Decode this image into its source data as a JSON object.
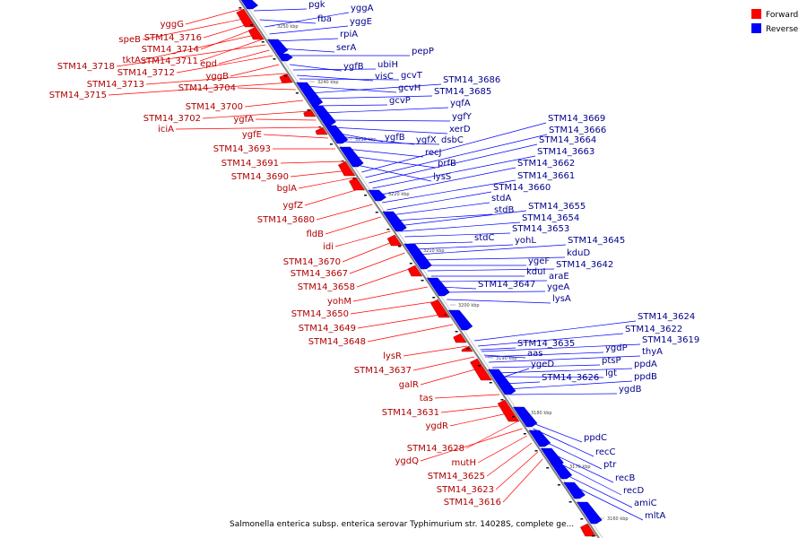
{
  "caption": "Salmonella enterica subsp. enterica serovar Typhimurium str. 14028S, complete ge...",
  "legend": [
    {
      "label": "Forward",
      "color": "#ff0000"
    },
    {
      "label": "Reverse",
      "color": "#0000ff"
    }
  ],
  "colors": {
    "forward": "#ff0000",
    "reverse": "#0000ff",
    "backbone": "#808080"
  },
  "ticks": [
    "3250 kbp",
    "3240 kbp",
    "3230 kbp",
    "3220 kbp",
    "3210 kbp",
    "3200 kbp",
    "3190 kbp",
    "3180 kbp",
    "3170 kbp",
    "3160 kbp"
  ],
  "forward_genes": [
    "yggG",
    "speB",
    "STM14_3716",
    "STM14_3714",
    "tktA",
    "STM14_3711",
    "STM14_3718",
    "epd",
    "STM14_3712",
    "yggB",
    "STM14_3713",
    "STM14_3715",
    "STM14_3704",
    "STM14_3700",
    "STM14_3702",
    "ygfA",
    "iciA",
    "ygfE",
    "STM14_3693",
    "STM14_3691",
    "STM14_3690",
    "bglA",
    "ygfZ",
    "STM14_3680",
    "fldB",
    "idi",
    "STM14_3670",
    "STM14_3667",
    "STM14_3658",
    "yohM",
    "STM14_3650",
    "STM14_3649",
    "STM14_3648",
    "lysR",
    "STM14_3637",
    "galR",
    "tas",
    "STM14_3631",
    "ygdR",
    "STM14_3628",
    "ygdQ",
    "mutH",
    "STM14_3625",
    "STM14_3623",
    "STM14_3616"
  ],
  "reverse_genes": [
    "pgk",
    "fba",
    "yggA",
    "yggE",
    "rpiA",
    "serA",
    "pepP",
    "ygfB",
    "ubiH",
    "visC",
    "gcvT",
    "gcvH",
    "STM14_3686",
    "STM14_3685",
    "gcvP",
    "yqfA",
    "ygfY",
    "xerD",
    "ygfB",
    "ygfX",
    "dsbC",
    "recJ",
    "prfB",
    "lysS",
    "STM14_3669",
    "STM14_3666",
    "STM14_3664",
    "STM14_3663",
    "STM14_3662",
    "STM14_3661",
    "STM14_3660",
    "stdA",
    "stdB",
    "STM14_3655",
    "STM14_3654",
    "STM14_3653",
    "stdC",
    "yohL",
    "STM14_3645",
    "kduD",
    "ygeF",
    "STM14_3642",
    "kduI",
    "araE",
    "STM14_3647",
    "ygeA",
    "lysA",
    "STM14_3624",
    "STM14_3622",
    "STM14_3619",
    "ygdP",
    "thyA",
    "STM14_3635",
    "aas",
    "ptsP",
    "ppdA",
    "lgt",
    "ygeD",
    "STM14_3626",
    "ppdB",
    "ygdB",
    "ppdC",
    "recC",
    "ptr",
    "recB",
    "recD",
    "amiC",
    "mltA"
  ]
}
